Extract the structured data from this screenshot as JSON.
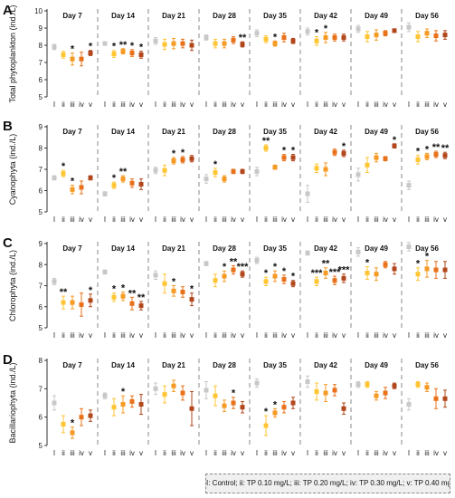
{
  "legend_text": "I: Control; ii: TP 0.10 mg/L; iii: TP 0.20 mg/L; iv: TP 0.30 mg/L; v: TP 0.40 mg/L",
  "colors": [
    "#c8c8c8",
    "#ffc533",
    "#f59a23",
    "#e8711a",
    "#b2471c"
  ],
  "chart_data": [
    {
      "type": "scatter",
      "panel": "A",
      "ylabel": "Total phytoplankton (ind./L)",
      "ylim": [
        5,
        10
      ],
      "yticks": [
        5,
        6,
        7,
        8,
        9,
        10
      ],
      "days": [
        "Day 7",
        "Day 14",
        "Day 21",
        "Day 28",
        "Day 35",
        "Day 42",
        "Day 49",
        "Day 56"
      ],
      "groups": [
        "I",
        "ii",
        "iii",
        "iv",
        "v"
      ],
      "values": [
        [
          7.9,
          7.45,
          7.2,
          7.2,
          7.55
        ],
        [
          8.1,
          7.5,
          7.65,
          7.55,
          7.45
        ],
        [
          8.25,
          8.05,
          8.1,
          8.1,
          8.0
        ],
        [
          8.45,
          8.1,
          8.1,
          8.3,
          8.05
        ],
        [
          8.7,
          8.35,
          8.1,
          8.45,
          8.25
        ],
        [
          8.8,
          8.25,
          8.45,
          8.45,
          8.45
        ],
        [
          8.95,
          8.5,
          8.6,
          8.7,
          8.85
        ],
        [
          9.05,
          8.5,
          8.7,
          8.55,
          8.6
        ]
      ],
      "errors": [
        [
          0.15,
          0.2,
          0.35,
          0.4,
          0.15
        ],
        [
          0.1,
          0.2,
          0.15,
          0.2,
          0.2
        ],
        [
          0.2,
          0.3,
          0.3,
          0.25,
          0.3
        ],
        [
          0.15,
          0.25,
          0.25,
          0.2,
          0.15
        ],
        [
          0.2,
          0.2,
          0.15,
          0.25,
          0.15
        ],
        [
          0.2,
          0.25,
          0.3,
          0.2,
          0.2
        ],
        [
          0.2,
          0.3,
          0.3,
          0.15,
          0.1
        ],
        [
          0.25,
          0.3,
          0.25,
          0.3,
          0.25
        ]
      ],
      "stars": [
        [
          "",
          "",
          "*",
          "",
          "*"
        ],
        [
          "",
          "*",
          "**",
          "*",
          "*"
        ],
        [
          "",
          "",
          "",
          "",
          ""
        ],
        [
          "",
          "",
          "",
          "",
          "**"
        ],
        [
          "",
          "",
          "*",
          "",
          ""
        ],
        [
          "",
          "*",
          "*",
          "",
          ""
        ],
        [
          "",
          "",
          "",
          "",
          ""
        ],
        [
          "",
          "",
          "",
          "",
          ""
        ]
      ]
    },
    {
      "type": "scatter",
      "panel": "B",
      "ylabel": "Cyanophyta (ind./L)",
      "ylim": [
        5,
        9
      ],
      "yticks": [
        5,
        6,
        7,
        8,
        9
      ],
      "days": [
        "Day 7",
        "Day 14",
        "Day 21",
        "Day 28",
        "Day 35",
        "Day 42",
        "Day 49",
        "Day 56"
      ],
      "groups": [
        "I",
        "ii",
        "iii",
        "iv",
        "v"
      ],
      "values": [
        [
          6.6,
          6.8,
          6.05,
          6.15,
          6.6
        ],
        [
          5.85,
          6.25,
          6.55,
          6.35,
          6.3
        ],
        [
          6.95,
          6.95,
          7.4,
          7.45,
          7.5
        ],
        [
          6.55,
          6.85,
          6.55,
          6.9,
          6.9
        ],
        [
          6.9,
          8.0,
          7.1,
          7.55,
          7.55
        ],
        [
          5.85,
          7.05,
          7.0,
          7.8,
          7.75
        ],
        [
          6.75,
          7.2,
          7.55,
          7.5,
          8.1
        ],
        [
          6.25,
          7.45,
          7.6,
          7.7,
          7.65
        ]
      ],
      "errors": [
        [
          0.1,
          0.15,
          0.2,
          0.3,
          0.1
        ],
        [
          0.1,
          0.15,
          0.15,
          0.2,
          0.25
        ],
        [
          0.15,
          0.25,
          0.15,
          0.15,
          0.15
        ],
        [
          0.2,
          0.2,
          0.15,
          0.1,
          0.1
        ],
        [
          0.2,
          0.15,
          0.1,
          0.15,
          0.15
        ],
        [
          0.4,
          0.2,
          0.3,
          0.15,
          0.15
        ],
        [
          0.3,
          0.35,
          0.2,
          0.1,
          0.1
        ],
        [
          0.2,
          0.2,
          0.15,
          0.15,
          0.15
        ]
      ],
      "stars": [
        [
          "",
          "*",
          "*",
          "",
          ""
        ],
        [
          "",
          "*",
          "**",
          "",
          ""
        ],
        [
          "",
          "",
          "*",
          "*",
          ""
        ],
        [
          "",
          "*",
          "",
          "",
          ""
        ],
        [
          "",
          "**",
          "",
          "*",
          "*"
        ],
        [
          "",
          "",
          "",
          "",
          "*"
        ],
        [
          "",
          "",
          "",
          "",
          "*"
        ],
        [
          "",
          "*",
          "*",
          "**",
          "**"
        ]
      ]
    },
    {
      "type": "scatter",
      "panel": "C",
      "ylabel": "Chlorophyta (ind./L)",
      "ylim": [
        5,
        9
      ],
      "yticks": [
        5,
        6,
        7,
        8,
        9
      ],
      "days": [
        "Day 7",
        "Day 14",
        "Day 21",
        "Day 28",
        "Day 35",
        "Day 42",
        "Day 49",
        "Day 56"
      ],
      "groups": [
        "I",
        "ii",
        "iii",
        "iv",
        "v"
      ],
      "values": [
        [
          7.2,
          6.2,
          6.2,
          6.1,
          6.3
        ],
        [
          7.65,
          6.45,
          6.5,
          6.15,
          6.05
        ],
        [
          7.5,
          7.1,
          6.75,
          6.7,
          6.35
        ],
        [
          8.05,
          7.25,
          7.45,
          7.75,
          7.55
        ],
        [
          8.2,
          7.2,
          7.45,
          7.3,
          7.1
        ],
        [
          8.55,
          7.2,
          7.6,
          7.25,
          7.35
        ],
        [
          8.6,
          7.6,
          7.55,
          8.0,
          7.8
        ],
        [
          8.85,
          7.55,
          7.8,
          7.75,
          7.75
        ]
      ],
      "errors": [
        [
          0.15,
          0.3,
          0.3,
          0.55,
          0.3
        ],
        [
          0.1,
          0.2,
          0.2,
          0.3,
          0.2
        ],
        [
          0.2,
          0.45,
          0.25,
          0.25,
          0.3
        ],
        [
          0.1,
          0.3,
          0.25,
          0.2,
          0.15
        ],
        [
          0.15,
          0.2,
          0.25,
          0.2,
          0.15
        ],
        [
          0.1,
          0.2,
          0.25,
          0.2,
          0.2
        ],
        [
          0.2,
          0.3,
          0.3,
          0.15,
          0.25
        ],
        [
          0.2,
          0.3,
          0.4,
          0.4,
          0.4
        ]
      ],
      "stars": [
        [
          "",
          "**",
          "",
          "",
          "*"
        ],
        [
          "",
          "*",
          "*",
          "**",
          "**"
        ],
        [
          "",
          "",
          "*",
          "",
          "*"
        ],
        [
          "",
          "",
          "*",
          "**",
          "***"
        ],
        [
          "",
          "*",
          "*",
          "*",
          "*"
        ],
        [
          "",
          "***",
          "**",
          "***",
          "***"
        ],
        [
          "",
          "*",
          "",
          "",
          ""
        ],
        [
          "",
          "*",
          "*",
          "",
          ""
        ]
      ]
    },
    {
      "type": "scatter",
      "panel": "D",
      "ylabel": "Bacillariophyta (ind./L)",
      "ylim": [
        5,
        8
      ],
      "yticks": [
        5,
        6,
        7,
        8
      ],
      "days": [
        "Day 7",
        "Day 14",
        "Day 21",
        "Day 28",
        "Day 35",
        "Day 42",
        "Day 49",
        "Day 56"
      ],
      "groups": [
        "I",
        "ii",
        "iii",
        "iv",
        "v"
      ],
      "values": [
        [
          6.5,
          5.75,
          5.45,
          6.0,
          6.05
        ],
        [
          6.75,
          6.35,
          6.45,
          6.55,
          6.45
        ],
        [
          7.0,
          6.8,
          7.1,
          6.85,
          6.3
        ],
        [
          6.95,
          6.75,
          6.4,
          6.5,
          6.35
        ],
        [
          7.2,
          5.7,
          6.15,
          6.35,
          6.5
        ],
        [
          7.25,
          6.9,
          6.85,
          6.95,
          6.3
        ],
        [
          7.15,
          7.15,
          6.75,
          6.85,
          7.1
        ],
        [
          6.45,
          7.15,
          7.05,
          6.65,
          6.65
        ]
      ],
      "errors": [
        [
          0.25,
          0.3,
          0.2,
          0.3,
          0.2
        ],
        [
          0.1,
          0.3,
          0.3,
          0.2,
          0.35
        ],
        [
          0.2,
          0.3,
          0.2,
          0.25,
          0.6
        ],
        [
          0.3,
          0.35,
          0.2,
          0.2,
          0.2
        ],
        [
          0.15,
          0.35,
          0.15,
          0.2,
          0.2
        ],
        [
          0.2,
          0.3,
          0.3,
          0.2,
          0.2
        ],
        [
          0.1,
          0.1,
          0.15,
          0.2,
          0.1
        ],
        [
          0.2,
          0.1,
          0.15,
          0.35,
          0.3
        ]
      ],
      "stars": [
        [
          "",
          "",
          "*",
          "",
          ""
        ],
        [
          "",
          "",
          "*",
          "",
          ""
        ],
        [
          "",
          "",
          "",
          "",
          ""
        ],
        [
          "",
          "",
          "",
          "*",
          ""
        ],
        [
          "",
          "*",
          "*",
          "",
          ""
        ],
        [
          "",
          "",
          "",
          "",
          ""
        ],
        [
          "",
          "",
          "",
          "",
          ""
        ],
        [
          "",
          "",
          "",
          "",
          ""
        ]
      ]
    }
  ]
}
